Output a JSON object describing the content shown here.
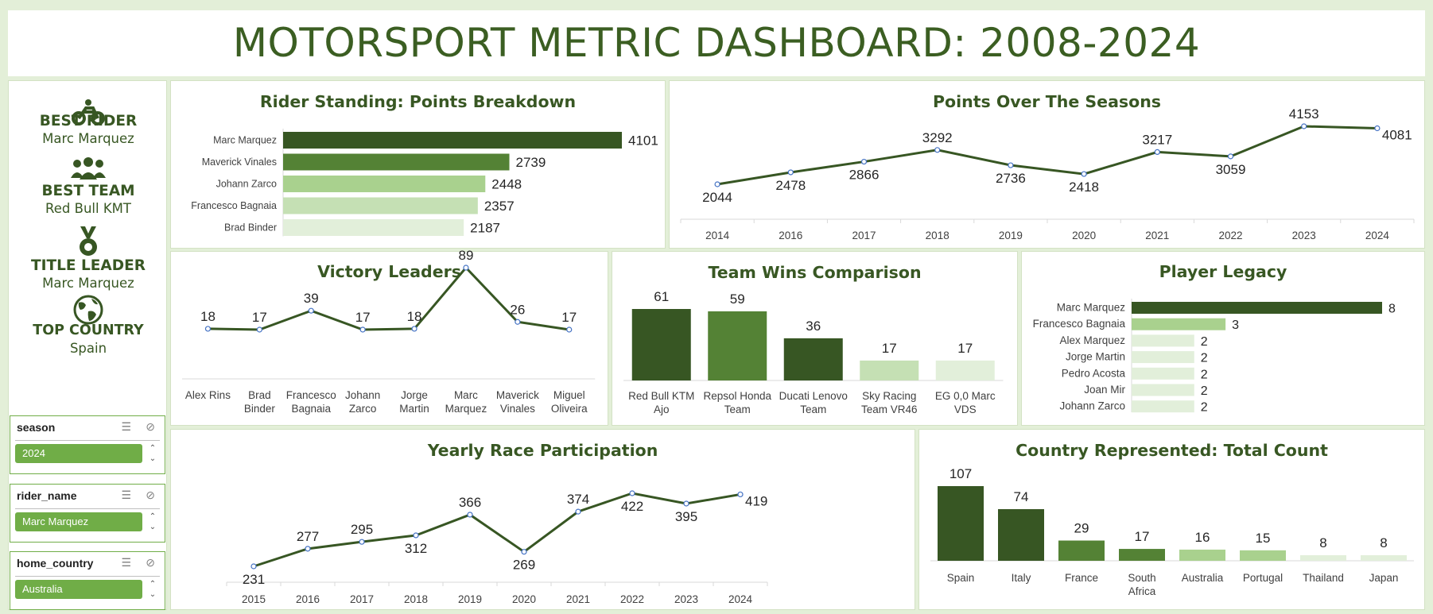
{
  "title": "MOTORSPORT METRIC DASHBOARD: 2008-2024",
  "kpis": [
    {
      "icon": "motorcycle-icon",
      "label": "BEST RIDER",
      "value": "Marc Marquez"
    },
    {
      "icon": "team-icon",
      "label": "BEST TEAM",
      "value": "Red Bull KMT"
    },
    {
      "icon": "medal-icon",
      "label": "TITLE LEADER",
      "value": "Marc Marquez"
    },
    {
      "icon": "globe-icon",
      "label": "TOP COUNTRY",
      "value": "Spain"
    }
  ],
  "slicers": [
    {
      "field": "season",
      "selected": "2024"
    },
    {
      "field": "rider_name",
      "selected": "Marc Marquez"
    },
    {
      "field": "home_country",
      "selected": "Australia"
    }
  ],
  "colors": {
    "dark": "#375623",
    "mid": "#548235",
    "light": "#a9d18e",
    "pale": "#c5e0b4",
    "palest": "#e2efda",
    "line": "#375623",
    "marker": "#4472c4"
  },
  "chart_data": [
    {
      "id": "rider-standing",
      "type": "bar",
      "orientation": "horizontal",
      "title": "Rider Standing: Points Breakdown",
      "categories": [
        "Marc Marquez",
        "Maverick Vinales",
        "Johann Zarco",
        "Francesco Bagnaia",
        "Brad Binder"
      ],
      "values": [
        4101,
        2739,
        2448,
        2357,
        2187
      ],
      "colors": [
        "#375623",
        "#548235",
        "#a9d18e",
        "#c5e0b4",
        "#e2efda"
      ]
    },
    {
      "id": "points-over-seasons",
      "type": "line",
      "title": "Points Over The Seasons",
      "categories": [
        "2014",
        "2016",
        "2017",
        "2018",
        "2019",
        "2020",
        "2021",
        "2022",
        "2023",
        "2024"
      ],
      "values": [
        2044,
        2478,
        2866,
        3292,
        2736,
        2418,
        3217,
        3059,
        4153,
        4081
      ]
    },
    {
      "id": "victory-leaders",
      "type": "line",
      "title": "Victory Leaders",
      "categories": [
        "Alex Rins",
        "Brad Binder",
        "Francesco Bagnaia",
        "Johann Zarco",
        "Jorge Martin",
        "Marc Marquez",
        "Maverick Vinales",
        "Miguel Oliveira"
      ],
      "values": [
        18,
        17,
        39,
        17,
        18,
        89,
        26,
        17
      ]
    },
    {
      "id": "team-wins",
      "type": "bar",
      "title": "Team Wins Comparison",
      "categories": [
        "Red Bull KTM Ajo",
        "Repsol Honda Team",
        "Ducati Lenovo Team",
        "Sky Racing Team VR46",
        "EG 0,0 Marc VDS"
      ],
      "values": [
        61,
        59,
        36,
        17,
        17
      ],
      "colors": [
        "#375623",
        "#548235",
        "#375623",
        "#c5e0b4",
        "#e2efda"
      ]
    },
    {
      "id": "player-legacy",
      "type": "bar",
      "orientation": "horizontal",
      "title": "Player Legacy",
      "categories": [
        "Marc Marquez",
        "Francesco Bagnaia",
        "Alex Marquez",
        "Jorge Martin",
        "Pedro Acosta",
        "Joan Mir",
        "Johann Zarco"
      ],
      "values": [
        8,
        3,
        2,
        2,
        2,
        2,
        2
      ],
      "colors": [
        "#375623",
        "#a9d18e",
        "#e2efda",
        "#e2efda",
        "#e2efda",
        "#e2efda",
        "#e2efda"
      ]
    },
    {
      "id": "race-participation",
      "type": "line",
      "title": "Yearly Race Participation",
      "categories": [
        "2015",
        "2016",
        "2017",
        "2018",
        "2019",
        "2020",
        "2021",
        "2022",
        "2023",
        "2024"
      ],
      "values": [
        231,
        277,
        295,
        312,
        366,
        269,
        374,
        422,
        395,
        419
      ]
    },
    {
      "id": "country-count",
      "type": "bar",
      "title": "Country Represented: Total Count",
      "categories": [
        "Spain",
        "Italy",
        "France",
        "South Africa",
        "Australia",
        "Portugal",
        "Thailand",
        "Japan"
      ],
      "values": [
        107,
        74,
        29,
        17,
        16,
        15,
        8,
        8
      ],
      "colors": [
        "#375623",
        "#375623",
        "#548235",
        "#548235",
        "#a9d18e",
        "#a9d18e",
        "#e2efda",
        "#e2efda"
      ]
    }
  ]
}
